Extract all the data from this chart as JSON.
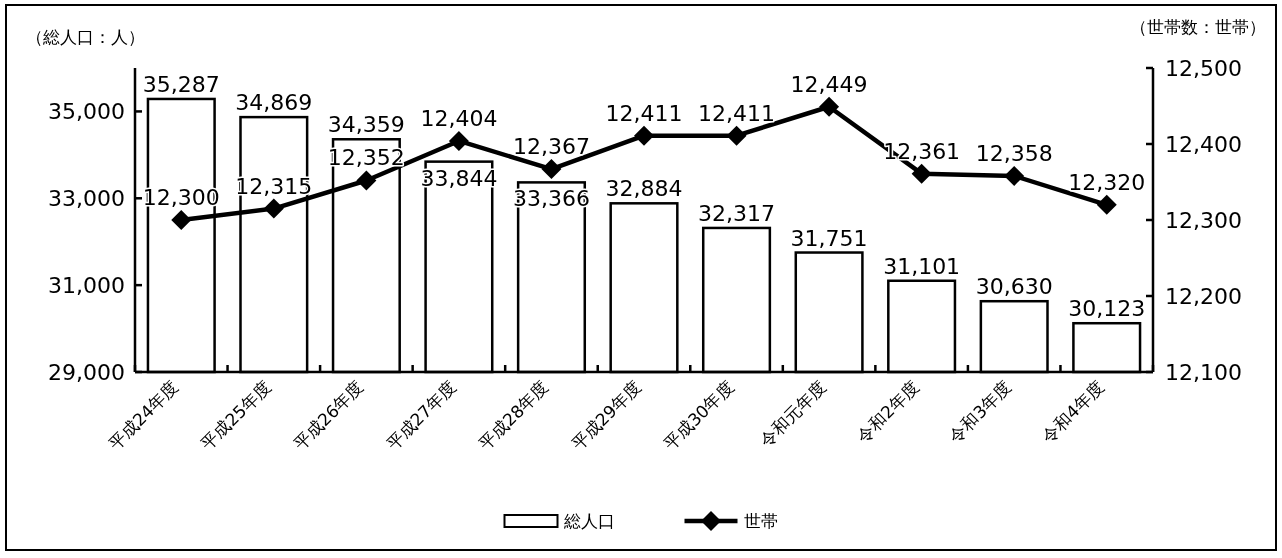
{
  "chart_data": {
    "type": "bar",
    "ylabel": "（総人口：人）",
    "y2label": "（世帯数：世帯）",
    "categories": [
      "平成24年度",
      "平成25年度",
      "平成26年度",
      "平成27年度",
      "平成28年度",
      "平成29年度",
      "平成30年度",
      "令和元年度",
      "令和2年度",
      "令和3年度",
      "令和4年度"
    ],
    "series": [
      {
        "name": "総人口",
        "color": "#ffffff",
        "values": [
          35287,
          34869,
          34359,
          33844,
          33366,
          32884,
          32317,
          31751,
          31101,
          30630,
          30123
        ],
        "value_labels": [
          "35,287",
          "34,869",
          "34,359",
          "33,844",
          "33,366",
          "32,884",
          "32,317",
          "31,751",
          "31,101",
          "30,630",
          "30,123"
        ]
      },
      {
        "name": "世帯",
        "type": "line",
        "axis": "y2",
        "color": "#000000",
        "values": [
          12300,
          12315,
          12352,
          12404,
          12367,
          12411,
          12411,
          12449,
          12361,
          12358,
          12320
        ],
        "value_labels": [
          "12,300",
          "12,315",
          "12,352",
          "12,404",
          "12,367",
          "12,411",
          "12,411",
          "12,449",
          "12,361",
          "12,358",
          "12,320"
        ]
      }
    ],
    "ylim": [
      29000,
      36000
    ],
    "yticks": [
      {
        "value": 29000,
        "label": "29,000"
      },
      {
        "value": 31000,
        "label": "31,000"
      },
      {
        "value": 33000,
        "label": "33,000"
      },
      {
        "value": 35000,
        "label": "35,000"
      }
    ],
    "y2lim": [
      12100,
      12500
    ],
    "y2ticks": [
      {
        "value": 12100,
        "label": "12,100"
      },
      {
        "value": 12200,
        "label": "12,200"
      },
      {
        "value": 12300,
        "label": "12,300"
      },
      {
        "value": 12400,
        "label": "12,400"
      },
      {
        "value": 12500,
        "label": "12,500"
      }
    ],
    "legend": "bottom",
    "marker": "diamond",
    "line_style": "solid"
  }
}
